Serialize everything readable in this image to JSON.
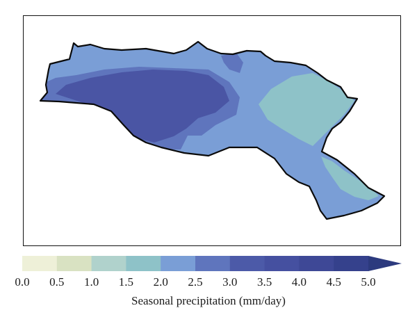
{
  "map": {
    "region_colors": {
      "dark": "#4a55a4",
      "medium": "#5f75bd",
      "light": "#7a9ed6",
      "teal": "#8ec2c8"
    }
  },
  "colorbar": {
    "label": "Seasonal precipitation (mm/day)",
    "ticks": [
      "0.0",
      "0.5",
      "1.0",
      "1.5",
      "2.0",
      "2.5",
      "3.0",
      "3.5",
      "4.0",
      "4.5",
      "5.0"
    ],
    "colors": [
      "#eef0d8",
      "#d9e2c2",
      "#b0d2cc",
      "#8ec2c8",
      "#7a9ed6",
      "#5f75bd",
      "#4c5aa8",
      "#4550a0",
      "#3e4896",
      "#35418c",
      "#2c3a7e"
    ],
    "extend": "max"
  }
}
